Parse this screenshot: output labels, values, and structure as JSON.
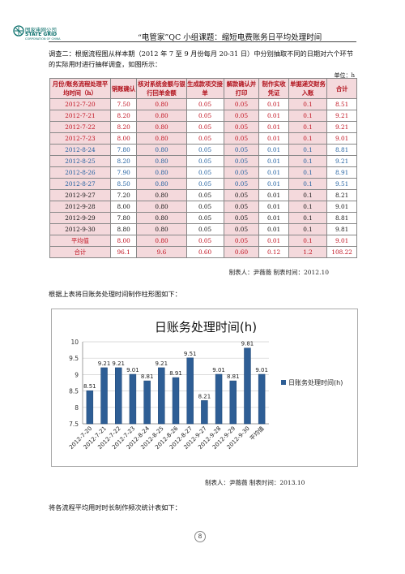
{
  "header": {
    "company_cn": "国家电网公司",
    "company_en": "STATE GRID",
    "company_en_sub": "CORPORATION OF CHINA",
    "title": "“电管家”QC 小组课题：缩短电费账务日平均处理时间"
  },
  "intro": "调查二：根据流程图从样本期（2012 年 7 至 9 月份每月 20-31 日）中分别抽取不同的日期对六个环节的实际用时进行抽样调查，如图所示：",
  "unit": "单位：h",
  "table": {
    "headers": [
      "月份/账务流程处理平均时间（h）",
      "销账确认",
      "核对系统金额与银行回单金额",
      "生成款项交接单",
      "解款确认并打印",
      "制作实收凭证",
      "单据递交财务入账",
      "合计"
    ],
    "rows": [
      {
        "style": "red",
        "cells": [
          "2012-7-20",
          "7.50",
          "0.80",
          "0.05",
          "0.05",
          "0.01",
          "0.1",
          "8.51"
        ]
      },
      {
        "style": "red",
        "cells": [
          "2012-7-21",
          "8.20",
          "0.80",
          "0.05",
          "0.05",
          "0.01",
          "0.1",
          "9.21"
        ]
      },
      {
        "style": "red",
        "cells": [
          "2012-7-22",
          "8.20",
          "0.80",
          "0.05",
          "0.05",
          "0.01",
          "0.1",
          "9.21"
        ]
      },
      {
        "style": "red",
        "cells": [
          "2012-7-23",
          "8.00",
          "0.80",
          "0.05",
          "0.05",
          "0.01",
          "0.1",
          "9.01"
        ]
      },
      {
        "style": "blue",
        "cells": [
          "2012-8-24",
          "7.80",
          "0.80",
          "0.05",
          "0.05",
          "0.01",
          "0.1",
          "8.81"
        ]
      },
      {
        "style": "blue",
        "cells": [
          "2012-8-25",
          "8.20",
          "0.80",
          "0.05",
          "0.05",
          "0.01",
          "0.1",
          "9.21"
        ]
      },
      {
        "style": "blue",
        "cells": [
          "2012-8-26",
          "7.90",
          "0.80",
          "0.05",
          "0.05",
          "0.01",
          "0.1",
          "8.91"
        ]
      },
      {
        "style": "blue",
        "cells": [
          "2012-8-27",
          "8.50",
          "0.80",
          "0.05",
          "0.05",
          "0.01",
          "0.1",
          "9.51"
        ]
      },
      {
        "style": "black",
        "cells": [
          "2012-9-27",
          "7.20",
          "0.80",
          "0.05",
          "0.05",
          "0.01",
          "0.1",
          "8.21"
        ]
      },
      {
        "style": "black",
        "cells": [
          "2012-9-28",
          "8.00",
          "0.80",
          "0.05",
          "0.05",
          "0.01",
          "0.1",
          "9.01"
        ]
      },
      {
        "style": "black",
        "cells": [
          "2012-9-29",
          "7.80",
          "0.80",
          "0.05",
          "0.05",
          "0.01",
          "0.1",
          "8.81"
        ]
      },
      {
        "style": "black",
        "cells": [
          "2012-9-30",
          "8.80",
          "0.80",
          "0.05",
          "0.05",
          "0.01",
          "0.1",
          "9.81"
        ]
      },
      {
        "style": "red",
        "cells": [
          "平均值",
          "8.00",
          "0.80",
          "0.05",
          "0.05",
          "0.01",
          "0.1",
          "9.01"
        ]
      },
      {
        "style": "red",
        "cells": [
          "合计",
          "96.1",
          "9.6",
          "0.60",
          "0.60",
          "0.12",
          "1.2",
          "108.22"
        ]
      }
    ]
  },
  "table_caption": "制表人：尹薇薇    制表时间：2012.10",
  "chart_intro": "根据上表将日账务处理时间制作柱形图如下：",
  "chart_data": {
    "type": "bar",
    "title": "日账务处理时间(h)",
    "categories": [
      "2012-7-20",
      "2012-7-21",
      "2012-7-22",
      "2012-7-23",
      "2012-8-24",
      "2012-8-25",
      "2012-8-26",
      "2012-8-27",
      "2012-9-27",
      "2012-9-28",
      "2012-9-29",
      "2012-9-30",
      "平均值"
    ],
    "series": [
      {
        "name": "日账务处理时间(h)",
        "values": [
          8.51,
          9.21,
          9.21,
          9.01,
          8.81,
          9.21,
          8.91,
          9.51,
          8.21,
          9.01,
          8.81,
          9.81,
          9.01
        ]
      }
    ],
    "yticks": [
      "7.5",
      "8",
      "8.5",
      "9",
      "9.5",
      "10"
    ],
    "ylim": [
      7.5,
      10
    ],
    "legend_position": "right",
    "grid": true,
    "bar_color": "#2e5e95"
  },
  "chart_caption": "制表人：尹薇薇    制表时间：2013.10",
  "closing": "将各流程平均用时时长制作频次统计表如下：",
  "page_number": "8"
}
